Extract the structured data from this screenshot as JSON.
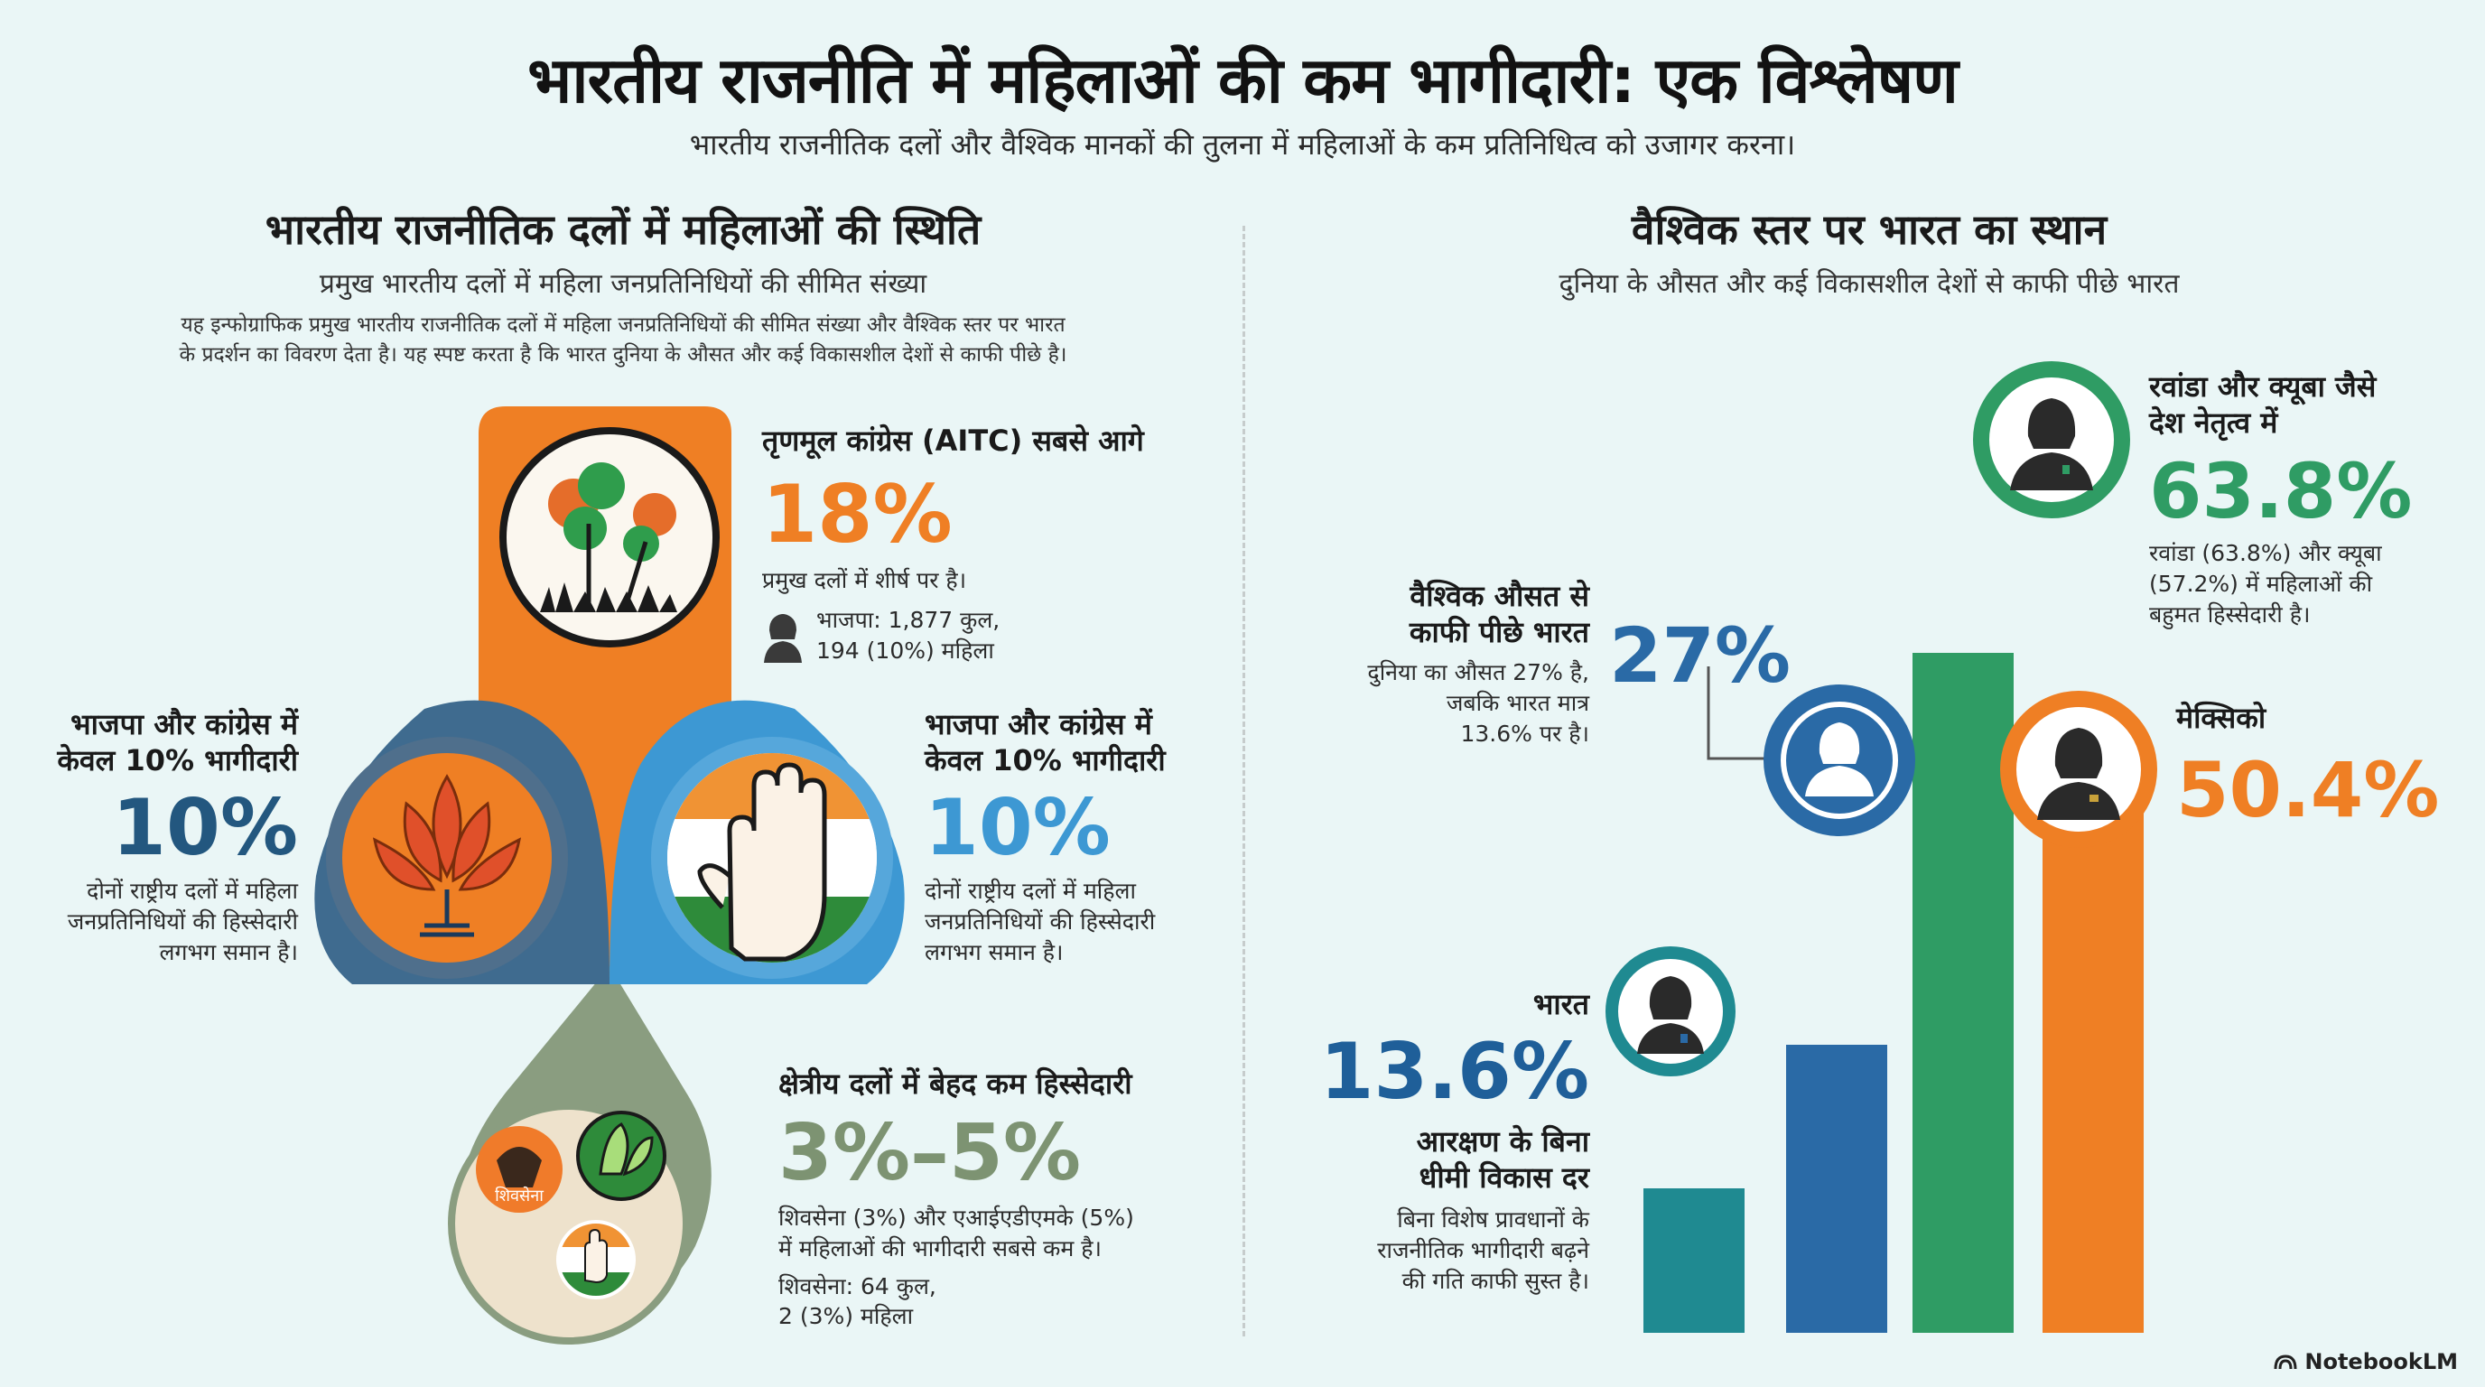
{
  "header": {
    "title": "भारतीय राजनीति में महिलाओं की कम भागीदारी: एक विश्लेषण",
    "subtitle": "भारतीय राजनीतिक दलों और वैश्विक मानकों की तुलना में महिलाओं के कम प्रतिनिधित्व को उजागर करना।"
  },
  "left": {
    "title": "भारतीय राजनीतिक दलों में महिलाओं की स्थिति",
    "subtitle": "प्रमुख भारतीय दलों में महिला जनप्रतिनिधियों की सीमित संख्या",
    "intro_line1": "यह इन्फोग्राफिक प्रमुख भारतीय राजनीतिक दलों में महिला जनप्रतिनिधियों की सीमित संख्या और वैश्विक स्तर पर भारत",
    "intro_line2": "के प्रदर्शन का विवरण देता है। यह स्पष्ट करता है कि भारत दुनिया के औसत और कई विकासशील देशों से काफी पीछे है।",
    "aitc": {
      "title": "तृणमूल कांग्रेस (AITC) सबसे आगे",
      "value": "18%",
      "body": "प्रमुख दलों में शीर्ष पर है।",
      "note_line1": "भाजपा: 1,877 कुल,",
      "note_line2": "194 (10%) महिला"
    },
    "bjp": {
      "title_line1": "भाजपा और कांग्रेस में",
      "title_line2": "केवल 10% भागीदारी",
      "value": "10%",
      "body_line1": "दोनों राष्ट्रीय दलों में महिला",
      "body_line2": "जनप्रतिनिधियों की हिस्सेदारी",
      "body_line3": "लगभग समान है।"
    },
    "congress": {
      "title_line1": "भाजपा और कांग्रेस में",
      "title_line2": "केवल 10% भागीदारी",
      "value": "10%",
      "body_line1": "दोनों राष्ट्रीय दलों में महिला",
      "body_line2": "जनप्रतिनिधियों की हिस्सेदारी",
      "body_line3": "लगभग समान है।"
    },
    "regional": {
      "title": "क्षेत्रीय दलों में बेहद कम हिस्सेदारी",
      "value": "3%–5%",
      "body_line1": "शिवसेना (3%) और एआईएडीएमके (5%)",
      "body_line2": "में महिलाओं की भागीदारी सबसे कम है।",
      "note_line1": "शिवसेना: 64 कुल,",
      "note_line2": "2 (3%) महिला",
      "shivsena_label": "शिवसेना"
    }
  },
  "right": {
    "title": "वैश्विक स्तर पर भारत का स्थान",
    "subtitle": "दुनिया के औसत और कई विकासशील देशों से काफी पीछे भारत",
    "world": {
      "title_line1": "वैश्विक औसत से",
      "title_line2": "काफी पीछे भारत",
      "value": "27%",
      "body_line1": "दुनिया का औसत 27% है,",
      "body_line2": "जबकि भारत मात्र",
      "body_line3": "13.6% पर है।"
    },
    "rwanda": {
      "title_line1": "रवांडा और क्यूबा जैसे",
      "title_line2": "देश नेतृत्व में",
      "value": "63.8%",
      "body_line1": "रवांडा (63.8%) और क्यूबा",
      "body_line2": "(57.2%) में महिलाओं की",
      "body_line3": "बहुमत हिस्सेदारी है।"
    },
    "mexico": {
      "title": "मेक्सिको",
      "value": "50.4%"
    },
    "india": {
      "title": "भारत",
      "value": "13.6%",
      "sub_line1": "आरक्षण के बिना",
      "sub_line2": "धीमी विकास दर",
      "body_line1": "बिना विशेष प्रावधानों के",
      "body_line2": "राजनीतिक भागीदारी बढ़ने",
      "body_line3": "की गति काफी सुस्त है।"
    }
  },
  "chart_data": {
    "type": "bar",
    "categories": [
      "भारत",
      "वैश्विक औसत",
      "रवांडा",
      "मेक्सिको"
    ],
    "values": [
      13.6,
      27,
      63.8,
      50.4
    ],
    "colors": [
      "#1f8a91",
      "#2a6aa6",
      "#2f9c64",
      "#ef7f24"
    ]
  },
  "colors": {
    "aitc": "#ef7f24",
    "bjp": "#3f6b8f",
    "congress": "#3d98d3",
    "regional": "#8a9d80",
    "india": "#1f8a91",
    "world": "#2a6aa6",
    "rwanda": "#2f9c64",
    "mexico": "#ef7f24"
  },
  "footer": {
    "brand": "NotebookLM"
  }
}
